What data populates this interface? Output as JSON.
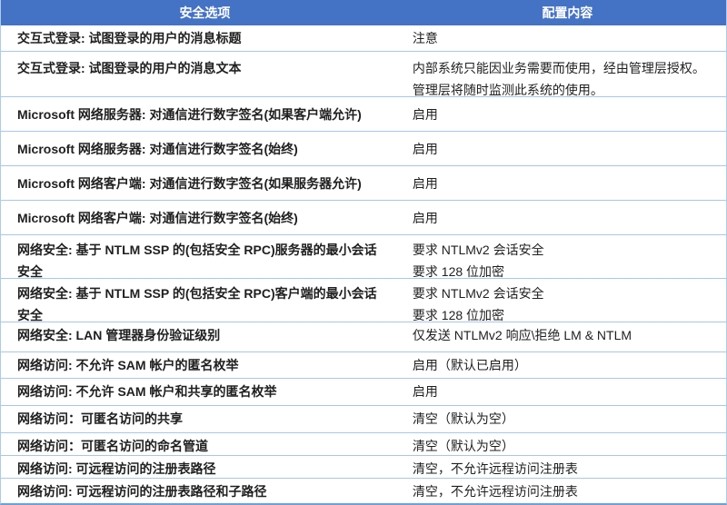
{
  "header": {
    "security_option_col": "安全选项",
    "config_content_col": "配置内容"
  },
  "colors": {
    "header_bg": "#4472C4",
    "header_text": "#FFFFFF",
    "row_separator": "#A9C7E8",
    "table_bottom_border": "#6F9FD6",
    "body_text": "#1F1F1F"
  },
  "rows": [
    {
      "option": "交互式登录: 试图登录的用户的消息标题",
      "values": [
        "注意"
      ]
    },
    {
      "option": "交互式登录: 试图登录的用户的消息文本",
      "values": [
        "内部系统只能因业务需要而使用，经由管理层授权。",
        "管理层将随时监测此系统的使用。"
      ]
    },
    {
      "option": "Microsoft 网络服务器: 对通信进行数字签名(如果客户端允许)",
      "values": [
        "启用"
      ]
    },
    {
      "option": "Microsoft 网络服务器: 对通信进行数字签名(始终)",
      "values": [
        "启用"
      ]
    },
    {
      "option": "Microsoft 网络客户端: 对通信进行数字签名(如果服务器允许)",
      "values": [
        "启用"
      ]
    },
    {
      "option": "Microsoft 网络客户端: 对通信进行数字签名(始终)",
      "values": [
        "启用"
      ]
    },
    {
      "option": "网络安全: 基于 NTLM SSP 的(包括安全 RPC)服务器的最小会话安全",
      "values": [
        "要求 NTLMv2 会话安全",
        "要求 128 位加密"
      ]
    },
    {
      "option": "网络安全: 基于 NTLM SSP 的(包括安全 RPC)客户端的最小会话安全",
      "values": [
        "要求 NTLMv2 会话安全",
        "要求 128 位加密"
      ]
    },
    {
      "option": "网络安全: LAN 管理器身份验证级别",
      "values": [
        "仅发送 NTLMv2 响应\\拒绝 LM & NTLM"
      ]
    },
    {
      "option": "网络访问: 不允许 SAM 帐户的匿名枚举",
      "values": [
        "启用（默认已启用）"
      ]
    },
    {
      "option": "网络访问: 不允许 SAM 帐户和共享的匿名枚举",
      "values": [
        "启用"
      ]
    },
    {
      "option": "网络访问：可匿名访问的共享",
      "values": [
        "清空（默认为空）"
      ]
    },
    {
      "option": "网络访问：可匿名访问的命名管道",
      "values": [
        "清空（默认为空）"
      ]
    },
    {
      "option": "网络访问: 可远程访问的注册表路径",
      "values": [
        "清空，不允许远程访问注册表"
      ]
    },
    {
      "option": "网络访问: 可远程访问的注册表路径和子路径",
      "values": [
        "清空，不允许远程访问注册表"
      ]
    }
  ]
}
